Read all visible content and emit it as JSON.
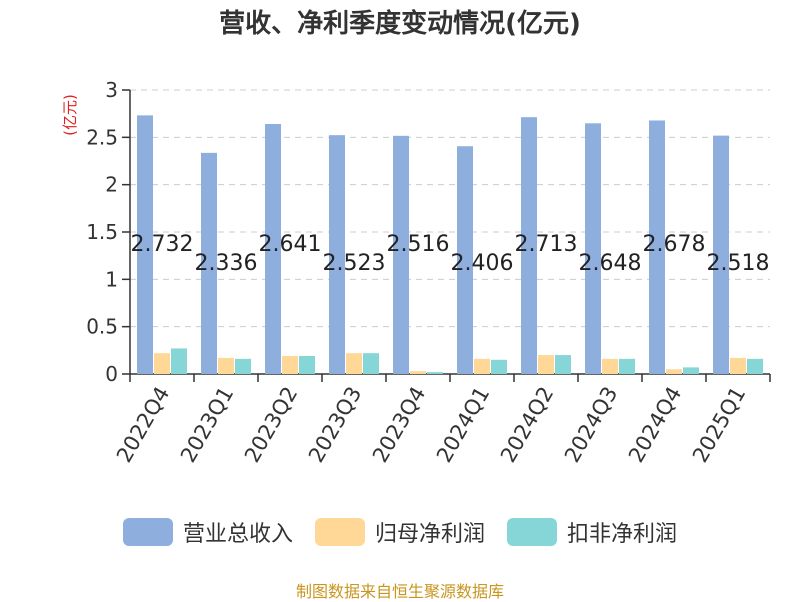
{
  "chart_data": {
    "type": "bar",
    "title": "营收、净利季度变动情况(亿元)",
    "ylabel": "(亿元)",
    "xlabel": "",
    "ylim": [
      0,
      3
    ],
    "yticks": [
      "0",
      "0.5",
      "1",
      "1.5",
      "2",
      "2.5",
      "3"
    ],
    "grid": true,
    "legend_position": "bottom",
    "categories": [
      "2022Q4",
      "2023Q1",
      "2023Q2",
      "2023Q3",
      "2023Q4",
      "2024Q1",
      "2024Q2",
      "2024Q3",
      "2024Q4",
      "2025Q1"
    ],
    "series": [
      {
        "name": "营业总收入",
        "color": "#8eaedd",
        "values": [
          2.732,
          2.336,
          2.641,
          2.523,
          2.516,
          2.406,
          2.713,
          2.648,
          2.678,
          2.518
        ],
        "labels": [
          "2.732",
          "2.336",
          "2.641",
          "2.523",
          "2.516",
          "2.406",
          "2.713",
          "2.648",
          "2.678",
          "2.518"
        ]
      },
      {
        "name": "归母净利润",
        "color": "#ffd898",
        "values": [
          0.22,
          0.17,
          0.19,
          0.22,
          0.03,
          0.16,
          0.2,
          0.16,
          0.05,
          0.17
        ]
      },
      {
        "name": "扣非净利润",
        "color": "#86d6d7",
        "values": [
          0.27,
          0.16,
          0.19,
          0.22,
          0.02,
          0.15,
          0.2,
          0.16,
          0.07,
          0.16
        ]
      }
    ]
  },
  "source_text": "制图数据来自恒生聚源数据库",
  "colors": {
    "axis": "#333333",
    "grid": "#cccccc",
    "ylabel": "#e02020",
    "title": "#333333",
    "source": "#c8961e"
  }
}
